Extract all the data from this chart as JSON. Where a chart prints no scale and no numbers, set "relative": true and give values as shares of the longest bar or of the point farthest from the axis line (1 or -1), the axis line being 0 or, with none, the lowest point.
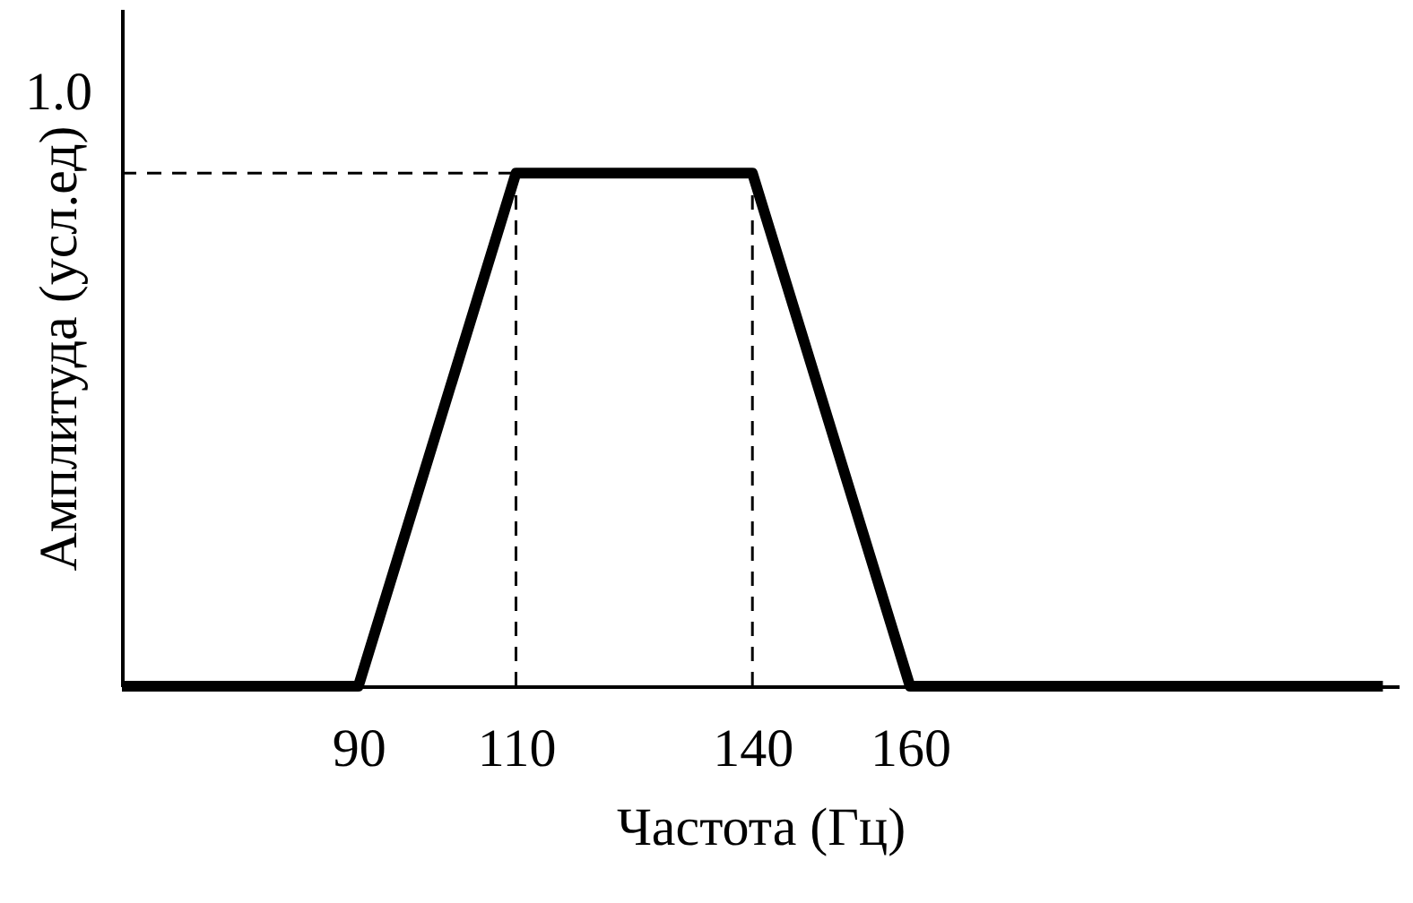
{
  "chart_data": {
    "type": "line",
    "xlabel": "Частота (Гц)",
    "ylabel": "Амплитуда (усл.ед)",
    "x": [
      60,
      90,
      110,
      140,
      160,
      220
    ],
    "series": [
      {
        "color": "#000000",
        "values": [
          0,
          0,
          1,
          1,
          0,
          0
        ]
      }
    ],
    "xlim": [
      60,
      222
    ],
    "relative": true,
    "annotations": [
      "1.0"
    ],
    "xticks": [
      90,
      110,
      140,
      160
    ],
    "ref_lines": [
      {
        "axis": "x",
        "value": 110,
        "line_style": "dashed",
        "color": "#000000"
      },
      {
        "axis": "x",
        "value": 140,
        "line_style": "dashed",
        "color": "#000000"
      },
      {
        "axis": "y",
        "value": 1,
        "line_style": "dashed",
        "color": "#000000"
      }
    ],
    "grid": false,
    "marker": "none",
    "line_style": "solid"
  }
}
